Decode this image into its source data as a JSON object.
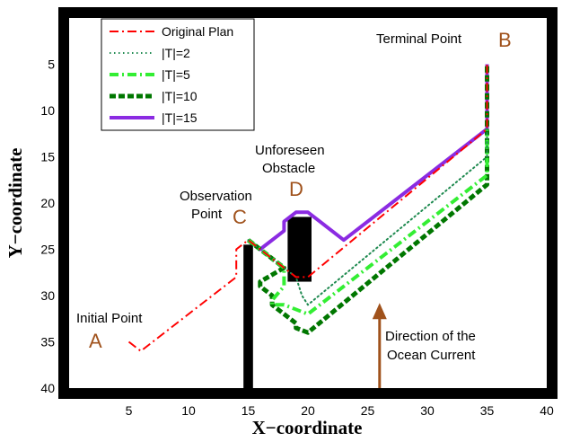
{
  "chart_data": {
    "type": "line",
    "title": "",
    "xlabel": "X−coordinate",
    "ylabel": "Y−coordinate",
    "xlim": [
      0,
      40
    ],
    "ylim": [
      40,
      0
    ],
    "y_inverted": true,
    "xticks": [
      5,
      10,
      15,
      20,
      25,
      30,
      35,
      40
    ],
    "yticks": [
      5,
      10,
      15,
      20,
      25,
      30,
      35,
      40
    ],
    "grid": false,
    "legend_position": "top-left",
    "series": [
      {
        "name": "Original Plan",
        "color": "#ff0000",
        "style": "dash-dot",
        "points": [
          [
            5,
            35
          ],
          [
            6,
            36
          ],
          [
            14,
            28
          ],
          [
            14,
            25
          ],
          [
            15,
            24
          ],
          [
            16,
            25
          ],
          [
            18,
            27
          ],
          [
            19,
            28
          ],
          [
            20,
            28
          ],
          [
            35,
            12
          ],
          [
            35,
            5
          ]
        ]
      },
      {
        "name": "|T|=2",
        "color": "#1f8a50",
        "style": "dotted",
        "points": [
          [
            15,
            24
          ],
          [
            18,
            27
          ],
          [
            19,
            28
          ],
          [
            19.5,
            30
          ],
          [
            20,
            31
          ],
          [
            35,
            15
          ],
          [
            35,
            12
          ]
        ]
      },
      {
        "name": "|T|=5",
        "color": "#33ee33",
        "style": "dash-dot",
        "points": [
          [
            15,
            24
          ],
          [
            18,
            27
          ],
          [
            18,
            29
          ],
          [
            17,
            30.5
          ],
          [
            17,
            31
          ],
          [
            18,
            31
          ],
          [
            20,
            32
          ],
          [
            35,
            17
          ],
          [
            35,
            12
          ]
        ]
      },
      {
        "name": "|T|=10",
        "color": "#007700",
        "style": "dashed",
        "points": [
          [
            15,
            24
          ],
          [
            18,
            27
          ],
          [
            16,
            28.5
          ],
          [
            16,
            29
          ],
          [
            17,
            30
          ],
          [
            17,
            31
          ],
          [
            19,
            33
          ],
          [
            19,
            33.5
          ],
          [
            20,
            34
          ],
          [
            35,
            18
          ],
          [
            35,
            12
          ],
          [
            35,
            5
          ]
        ]
      },
      {
        "name": "|T|=15",
        "color": "#8b2be2",
        "style": "solid",
        "points": [
          [
            15,
            24
          ],
          [
            16,
            25
          ],
          [
            18,
            23
          ],
          [
            18,
            22
          ],
          [
            19,
            21
          ],
          [
            20,
            21
          ],
          [
            21,
            22
          ],
          [
            23,
            24
          ],
          [
            35,
            12
          ],
          [
            35,
            5
          ]
        ]
      }
    ],
    "obstacles": [
      {
        "x0": 14.6,
        "x1": 15.4,
        "y0": 24.5,
        "y1": 40
      },
      {
        "x0": 18.3,
        "x1": 20.3,
        "y0": 21.5,
        "y1": 28.5
      }
    ],
    "markers": [
      {
        "letter": "A",
        "x": 4,
        "y": 35.5,
        "label": "Initial Point"
      },
      {
        "letter": "B",
        "x": 36.2,
        "y": 3.6,
        "label": "Terminal Point"
      },
      {
        "letter": "C",
        "x": 15.5,
        "y": 22.6,
        "label": "Observation Point"
      },
      {
        "letter": "D",
        "x": 20.1,
        "y": 19.6,
        "label": "Unforeseen Obstacle"
      }
    ],
    "current_arrow": {
      "x": 26,
      "y_tail": 40,
      "y_head": 31,
      "color": "#a0521c",
      "label": "Direction of the Ocean Current"
    }
  }
}
